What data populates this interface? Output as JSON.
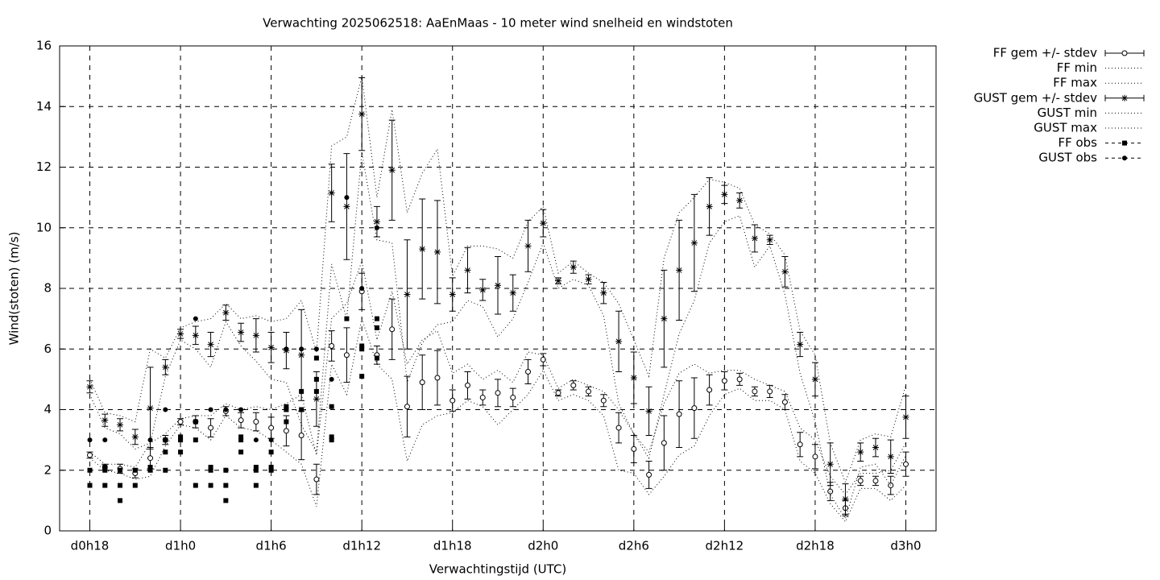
{
  "chart_data": {
    "type": "line",
    "title": "Verwachting 2025062518: AaEnMaas - 10 meter wind snelheid en windstoten",
    "xlabel": "Verwachtingstijd (UTC)",
    "ylabel": "Wind(stoten) (m/s)",
    "xlim": [
      16,
      74
    ],
    "ylim": [
      0,
      16
    ],
    "grid": true,
    "legend": "right",
    "xticks": [
      {
        "value": 18,
        "label": "d0h18"
      },
      {
        "value": 24,
        "label": "d1h0"
      },
      {
        "value": 30,
        "label": "d1h6"
      },
      {
        "value": 36,
        "label": "d1h12"
      },
      {
        "value": 42,
        "label": "d1h18"
      },
      {
        "value": 48,
        "label": "d2h0"
      },
      {
        "value": 54,
        "label": "d2h6"
      },
      {
        "value": 60,
        "label": "d2h12"
      },
      {
        "value": 66,
        "label": "d2h18"
      },
      {
        "value": 72,
        "label": "d3h0"
      }
    ],
    "yticks": [
      0,
      2,
      4,
      6,
      8,
      10,
      12,
      14,
      16
    ],
    "x": [
      18,
      19,
      20,
      21,
      22,
      23,
      24,
      25,
      26,
      27,
      28,
      29,
      30,
      31,
      32,
      33,
      34,
      35,
      36,
      37,
      38,
      39,
      40,
      41,
      42,
      43,
      44,
      45,
      46,
      47,
      48,
      49,
      50,
      51,
      52,
      53,
      54,
      55,
      56,
      57,
      58,
      59,
      60,
      61,
      62,
      63,
      64,
      65,
      66,
      67,
      68,
      69,
      70,
      71,
      72
    ],
    "series": [
      {
        "name": "FF gem +/- stdev",
        "type": "errorbar",
        "marker": "circle-open",
        "color": "#000000",
        "values": [
          2.5,
          2.1,
          2.05,
          1.9,
          2.4,
          3.0,
          3.6,
          3.6,
          3.4,
          3.95,
          3.65,
          3.6,
          3.4,
          3.3,
          3.15,
          1.7,
          6.1,
          5.8,
          7.9,
          5.8,
          6.65,
          4.1,
          4.9,
          5.05,
          4.3,
          4.8,
          4.4,
          4.55,
          4.4,
          5.25,
          5.65,
          4.55,
          4.8,
          4.6,
          4.3,
          3.4,
          2.7,
          1.85,
          2.9,
          3.85,
          4.05,
          4.65,
          4.95,
          5.0,
          4.6,
          4.6,
          4.25,
          2.85,
          2.45,
          1.3,
          0.75,
          1.65,
          1.65,
          1.5,
          2.2
        ],
        "stdev": [
          0.1,
          0.1,
          0.15,
          0.15,
          0.35,
          0.15,
          0.1,
          0.2,
          0.3,
          0.15,
          0.25,
          0.3,
          0.35,
          0.5,
          0.8,
          0.5,
          0.5,
          0.9,
          0.6,
          0.3,
          1.0,
          1.0,
          0.9,
          0.9,
          0.35,
          0.45,
          0.25,
          0.45,
          0.3,
          0.4,
          0.2,
          0.1,
          0.15,
          0.15,
          0.2,
          0.5,
          0.45,
          0.45,
          0.9,
          1.1,
          1.0,
          0.5,
          0.3,
          0.2,
          0.15,
          0.2,
          0.25,
          0.4,
          0.4,
          0.3,
          0.25,
          0.15,
          0.15,
          0.3,
          0.4
        ]
      },
      {
        "name": "FF min",
        "type": "line",
        "color": "#000000",
        "values": [
          2.4,
          2.0,
          1.9,
          1.7,
          1.8,
          2.8,
          3.5,
          3.4,
          3.0,
          3.8,
          3.4,
          3.3,
          3.0,
          2.6,
          2.2,
          0.8,
          5.5,
          4.5,
          7.0,
          5.5,
          5.0,
          2.3,
          3.5,
          3.8,
          3.9,
          4.3,
          4.1,
          3.5,
          4.0,
          4.5,
          5.3,
          4.3,
          4.5,
          4.3,
          3.8,
          2.0,
          1.9,
          1.2,
          1.8,
          2.5,
          2.8,
          3.8,
          4.5,
          4.7,
          4.3,
          4.3,
          4.0,
          2.3,
          1.9,
          0.9,
          0.3,
          1.4,
          1.4,
          1.0,
          1.5
        ]
      },
      {
        "name": "FF max",
        "type": "line",
        "color": "#000000",
        "values": [
          2.6,
          2.2,
          2.2,
          2.1,
          2.9,
          3.2,
          3.7,
          3.8,
          3.8,
          4.2,
          4.0,
          4.1,
          4.0,
          4.2,
          4.5,
          2.5,
          7.0,
          7.5,
          8.9,
          6.3,
          7.9,
          5.5,
          6.3,
          6.6,
          5.2,
          5.5,
          5.0,
          5.3,
          4.9,
          5.9,
          5.8,
          4.7,
          5.0,
          4.8,
          4.6,
          4.0,
          3.2,
          2.6,
          4.2,
          5.2,
          5.5,
          5.2,
          5.3,
          5.3,
          5.0,
          4.8,
          4.6,
          3.4,
          3.0,
          1.8,
          1.2,
          1.9,
          1.9,
          2.0,
          2.9
        ]
      },
      {
        "name": "GUST gem +/- stdev",
        "type": "errorbar",
        "marker": "star",
        "color": "#000000",
        "values": [
          4.75,
          3.65,
          3.5,
          3.1,
          4.05,
          5.4,
          6.5,
          6.45,
          6.15,
          7.2,
          6.55,
          6.45,
          6.05,
          5.95,
          5.8,
          4.35,
          11.15,
          10.7,
          13.75,
          10.2,
          11.9,
          7.8,
          9.3,
          9.2,
          7.8,
          8.6,
          7.95,
          8.1,
          7.85,
          9.4,
          10.15,
          8.25,
          8.7,
          8.3,
          7.85,
          6.25,
          5.05,
          3.95,
          7.0,
          8.6,
          9.5,
          10.7,
          11.1,
          10.9,
          9.65,
          9.6,
          8.55,
          6.15,
          5.0,
          2.2,
          1.05,
          2.6,
          2.75,
          2.45,
          3.75
        ],
        "stdev": [
          0.2,
          0.2,
          0.2,
          0.25,
          1.35,
          0.25,
          0.15,
          0.3,
          0.4,
          0.25,
          0.3,
          0.55,
          0.5,
          0.6,
          1.5,
          0.9,
          0.95,
          1.75,
          1.2,
          0.5,
          1.65,
          1.8,
          1.65,
          1.7,
          0.55,
          0.75,
          0.35,
          0.95,
          0.6,
          0.85,
          0.45,
          0.1,
          0.2,
          0.15,
          0.35,
          1.0,
          0.85,
          0.8,
          1.6,
          1.65,
          1.6,
          0.95,
          0.3,
          0.25,
          0.45,
          0.15,
          0.5,
          0.4,
          0.55,
          0.7,
          0.5,
          0.3,
          0.3,
          0.55,
          0.7
        ]
      },
      {
        "name": "GUST min",
        "type": "line",
        "color": "#000000",
        "values": [
          4.5,
          3.4,
          3.2,
          2.7,
          2.9,
          5.1,
          6.3,
          6.0,
          5.4,
          6.9,
          6.1,
          5.6,
          5.0,
          4.9,
          3.5,
          2.6,
          8.8,
          7.0,
          12.5,
          9.6,
          9.5,
          4.9,
          6.2,
          6.8,
          6.9,
          7.6,
          7.4,
          6.4,
          7.0,
          8.2,
          9.5,
          8.0,
          8.3,
          8.1,
          7.1,
          4.2,
          3.2,
          2.4,
          4.5,
          6.5,
          7.6,
          9.5,
          10.2,
          10.4,
          8.7,
          9.4,
          7.8,
          5.2,
          3.6,
          1.2,
          0.4,
          2.1,
          2.2,
          1.5,
          2.5
        ]
      },
      {
        "name": "GUST max",
        "type": "line",
        "color": "#000000",
        "values": [
          5.0,
          3.9,
          3.8,
          3.6,
          6.0,
          5.7,
          6.7,
          6.9,
          7.0,
          7.5,
          7.0,
          7.1,
          6.9,
          7.0,
          7.6,
          5.9,
          12.7,
          13.0,
          15.0,
          11.0,
          13.9,
          10.5,
          11.8,
          12.6,
          8.4,
          9.4,
          9.4,
          9.3,
          9.0,
          10.2,
          10.7,
          8.5,
          8.9,
          8.5,
          8.2,
          7.5,
          6.3,
          5.1,
          9.0,
          10.5,
          11.0,
          11.6,
          11.5,
          11.3,
          10.1,
          9.8,
          9.1,
          6.6,
          5.8,
          2.9,
          1.6,
          3.0,
          3.2,
          3.1,
          4.8
        ]
      },
      {
        "name": "FF obs",
        "type": "scatter",
        "marker": "square",
        "color": "#000000",
        "x": [
          18,
          18,
          19,
          19,
          19,
          20,
          20,
          20,
          21,
          21,
          22,
          22,
          23,
          23,
          23,
          24,
          24,
          24,
          25,
          25,
          25,
          26,
          26,
          26,
          27,
          27,
          27,
          28,
          28,
          28,
          29,
          29,
          29,
          30,
          30,
          30,
          31,
          31,
          31,
          32,
          32,
          33,
          33,
          33,
          34,
          34,
          34,
          35,
          36,
          36,
          36,
          37,
          37,
          37
        ],
        "values": [
          1.5,
          2.0,
          1.5,
          2.0,
          2.1,
          1.0,
          1.5,
          2.0,
          1.5,
          2.0,
          2.0,
          2.1,
          2.0,
          2.6,
          3.0,
          2.6,
          3.0,
          3.1,
          1.5,
          3.0,
          3.6,
          1.5,
          2.0,
          2.1,
          1.0,
          1.5,
          2.0,
          2.6,
          3.0,
          3.1,
          1.5,
          2.0,
          2.1,
          2.0,
          2.1,
          2.6,
          3.6,
          4.0,
          4.1,
          4.0,
          4.6,
          4.6,
          5.0,
          5.7,
          3.0,
          3.1,
          4.1,
          7.0,
          5.1,
          6.0,
          6.1,
          5.7,
          6.7,
          7.0
        ]
      },
      {
        "name": "GUST obs",
        "type": "scatter",
        "marker": "circle",
        "color": "#000000",
        "x": [
          18,
          19,
          20,
          22,
          23,
          24,
          25,
          26,
          27,
          27,
          28,
          29,
          30,
          31,
          32,
          33,
          34,
          35,
          36,
          37
        ],
        "values": [
          3,
          3,
          2,
          3,
          4,
          3,
          7,
          4,
          2,
          4,
          4,
          3,
          3,
          6,
          6,
          6,
          5,
          11,
          8,
          10
        ]
      }
    ]
  }
}
